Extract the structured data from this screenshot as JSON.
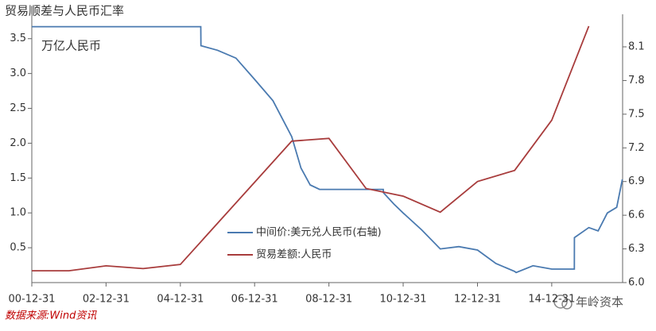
{
  "chart_data": {
    "type": "line",
    "title": "贸易顺差与人民币汇率",
    "annotation": "万亿人民币",
    "source": "数据来源:Wind资讯",
    "watermark": "年岭资本",
    "xlim": [
      "00-12-31",
      "16-11-27"
    ],
    "xticks": [
      "00-12-31",
      "02-12-31",
      "04-12-31",
      "06-12-31",
      "08-12-31",
      "10-12-31",
      "12-12-31",
      "14-12-31"
    ],
    "ylim": [
      0,
      3.85
    ],
    "yticks": [
      0.5,
      {
        "value": 1,
        "label": "1.0"
      },
      1.5,
      {
        "value": 2,
        "label": "2.0"
      },
      2.5,
      {
        "value": 3,
        "label": "3.0"
      },
      3.5
    ],
    "y2lim": [
      6,
      8.39
    ],
    "y2ticks": [
      {
        "value": 6,
        "label": "6.0"
      },
      6.3,
      6.6,
      6.9,
      7.2,
      7.5,
      7.8,
      8.1
    ],
    "legend": "center",
    "series": [
      {
        "name": "中间价:美元兑人民币(右轴)",
        "color": "#4a7ab0",
        "axis": "y2",
        "x": [
          "00-12-31",
          "05-07-20",
          "05-07-21",
          "05-12-31",
          "06-06-30",
          "06-12-31",
          "07-06-30",
          "07-12-31",
          "08-03-31",
          "08-06-30",
          "08-09-30",
          "08-12-31",
          "09-06-30",
          "09-12-31",
          "10-06-18",
          "10-06-21",
          "10-09-30",
          "10-12-31",
          "11-06-30",
          "11-12-31",
          "12-06-30",
          "12-12-31",
          "13-06-30",
          "13-12-31",
          "14-01-15",
          "14-06-30",
          "14-12-31",
          "15-08-10",
          "15-08-11",
          "15-12-31",
          "16-03-31",
          "16-06-30",
          "16-09-30",
          "16-11-25"
        ],
        "values": [
          8.28,
          8.28,
          8.11,
          8.07,
          8.0,
          7.81,
          7.62,
          7.3,
          7.02,
          6.87,
          6.83,
          6.83,
          6.83,
          6.83,
          6.83,
          6.8,
          6.7,
          6.62,
          6.47,
          6.3,
          6.32,
          6.29,
          6.17,
          6.1,
          6.09,
          6.15,
          6.12,
          6.12,
          6.4,
          6.49,
          6.46,
          6.62,
          6.67,
          6.92
        ]
      },
      {
        "name": "贸易差额:人民币",
        "color": "#a83c3c",
        "x": [
          "00-12-31",
          "01-12-31",
          "02-12-31",
          "03-12-31",
          "04-12-31",
          "05-12-31",
          "06-12-31",
          "07-12-31",
          "08-12-31",
          "09-12-31",
          "10-12-31",
          "11-12-31",
          "12-12-31",
          "13-12-31",
          "14-12-31",
          "15-12-31"
        ],
        "values": [
          0.17,
          0.17,
          0.24,
          0.2,
          0.26,
          0.85,
          1.44,
          2.03,
          2.07,
          1.35,
          1.24,
          1.01,
          1.45,
          1.61,
          2.33,
          3.68
        ]
      }
    ]
  }
}
